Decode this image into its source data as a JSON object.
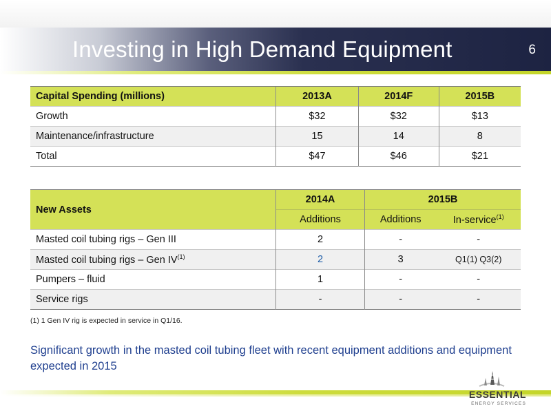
{
  "title": "Investing in High Demand Equipment",
  "page_number": "6",
  "capital_table": {
    "header": [
      "Capital Spending (millions)",
      "2013A",
      "2014F",
      "2015B"
    ],
    "rows": [
      [
        "Growth",
        "$32",
        "$32",
        "$13"
      ],
      [
        "Maintenance/infrastructure",
        "15",
        "14",
        "8"
      ],
      [
        "Total",
        "$47",
        "$46",
        "$21"
      ]
    ]
  },
  "assets_table": {
    "header_label": "New Assets",
    "group_2014": "2014A",
    "group_2015": "2015B",
    "sub_additions_2014": "Additions",
    "sub_additions_2015": "Additions",
    "sub_inservice": "In-service",
    "sub_inservice_sup": "(1)",
    "rows": [
      {
        "label": "Masted coil tubing rigs – Gen III",
        "sup": "",
        "a2014": "2",
        "a2015": "-",
        "inservice": "-"
      },
      {
        "label": "Masted coil tubing rigs – Gen IV",
        "sup": "(1)",
        "a2014": "2",
        "a2015": "3",
        "inservice": "Q1(1) Q3(2)"
      },
      {
        "label": "Pumpers – fluid",
        "sup": "",
        "a2014": "1",
        "a2015": "-",
        "inservice": "-"
      },
      {
        "label": "Service rigs",
        "sup": "",
        "a2014": "-",
        "a2015": "-",
        "inservice": "-"
      }
    ]
  },
  "footnote": "(1) 1 Gen IV rig is expected in service in Q1/16.",
  "summary": "Significant growth in the masted coil tubing fleet with recent equipment additions and equipment expected in 2015",
  "logo": {
    "name": "ESSENTIAL",
    "sub": "ENERGY SERVICES",
    "icon": "derrick-logo-icon"
  },
  "colors": {
    "accent": "#d4e157",
    "title_bar": "#1d2342",
    "summary_text": "#1f3f8f"
  }
}
